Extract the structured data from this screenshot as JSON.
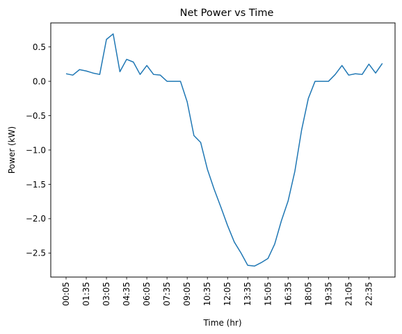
{
  "chart_data": {
    "type": "line",
    "title": "Net Power vs Time",
    "xlabel": "Time (hr)",
    "ylabel": "Power (kW)",
    "grid": false,
    "legend": "none",
    "x_tick_labels": [
      "00:05",
      "01:35",
      "03:05",
      "04:35",
      "06:05",
      "07:35",
      "09:05",
      "10:35",
      "12:05",
      "13:35",
      "15:05",
      "16:35",
      "18:05",
      "19:35",
      "21:05",
      "22:35"
    ],
    "x_tick_every": 3,
    "ylim": [
      -2.85,
      0.85
    ],
    "yticks": [
      0.5,
      0.0,
      -0.5,
      -1.0,
      -1.5,
      -2.0,
      -2.5
    ],
    "ytick_labels": [
      "0.5",
      "0.0",
      "−0.5",
      "−1.0",
      "−1.5",
      "−2.0",
      "−2.5"
    ],
    "series": [
      {
        "color": "#1f77b4",
        "values": [
          0.11,
          0.09,
          0.17,
          0.15,
          0.12,
          0.1,
          0.61,
          0.69,
          0.14,
          0.32,
          0.28,
          0.1,
          0.23,
          0.1,
          0.09,
          0.0,
          0.0,
          0.0,
          -0.3,
          -0.79,
          -0.89,
          -1.28,
          -1.57,
          -1.83,
          -2.1,
          -2.34,
          -2.5,
          -2.68,
          -2.69,
          -2.64,
          -2.58,
          -2.37,
          -2.03,
          -1.74,
          -1.31,
          -0.71,
          -0.25,
          0.0,
          0.0,
          0.0,
          0.1,
          0.23,
          0.09,
          0.11,
          0.1,
          0.25,
          0.12,
          0.26
        ]
      }
    ]
  }
}
